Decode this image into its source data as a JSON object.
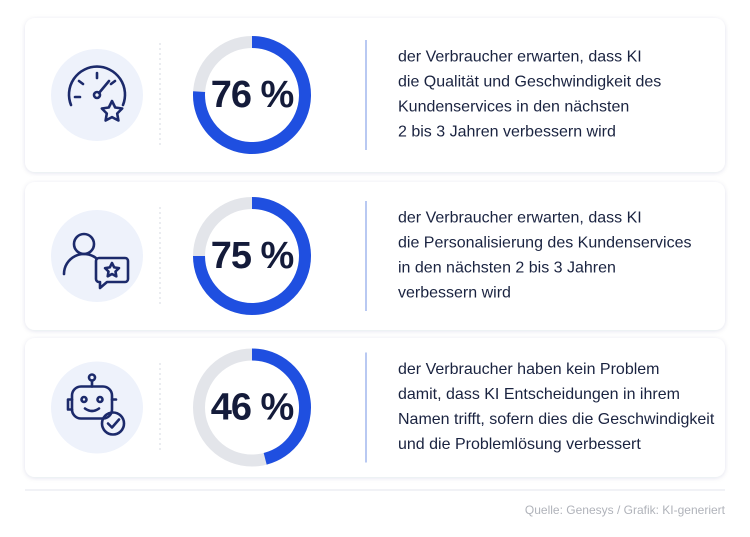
{
  "chart_data": [
    {
      "type": "donut",
      "values": [
        76
      ],
      "value_labels": [
        "76 %"
      ],
      "ylim": [
        0,
        100
      ],
      "color": "#1f4fe0",
      "text": [
        "der Verbraucher erwarten, dass KI",
        "die Qualität und Geschwindigkeit des",
        "Kundenservices in den nächsten",
        "2 bis 3 Jahren verbessern wird"
      ]
    },
    {
      "type": "donut",
      "values": [
        75
      ],
      "value_labels": [
        "75 %"
      ],
      "ylim": [
        0,
        100
      ],
      "color": "#1f4fe0",
      "text": [
        "der Verbraucher erwarten, dass KI",
        "die Personalisierung des Kundenservices",
        "in den nächsten 2 bis 3 Jahren",
        "verbessern wird"
      ]
    },
    {
      "type": "donut",
      "values": [
        46
      ],
      "value_labels": [
        "46 %"
      ],
      "ylim": [
        0,
        100
      ],
      "color": "#1f4fe0",
      "text": [
        "der Verbraucher haben kein Problem",
        "damit, dass KI Entscheidungen in ihrem",
        "Namen trifft, sofern dies die Geschwindigkeit",
        "und die Problemlösung verbessert"
      ]
    }
  ],
  "source": "Quelle: Genesys / Grafik: KI-generiert"
}
